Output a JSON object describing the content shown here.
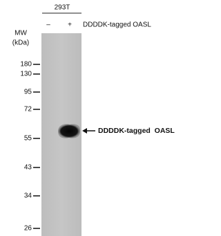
{
  "header": {
    "cell_line": "293T",
    "lanes": [
      "–",
      "+"
    ],
    "treatment": "DDDDK-tagged OASL"
  },
  "mw_label": [
    "MW",
    "(kDa)"
  ],
  "markers": [
    "180",
    "130",
    "95",
    "72",
    "55",
    "43",
    "34",
    "26"
  ],
  "band_label": "DDDDK-tagged  OASL"
}
